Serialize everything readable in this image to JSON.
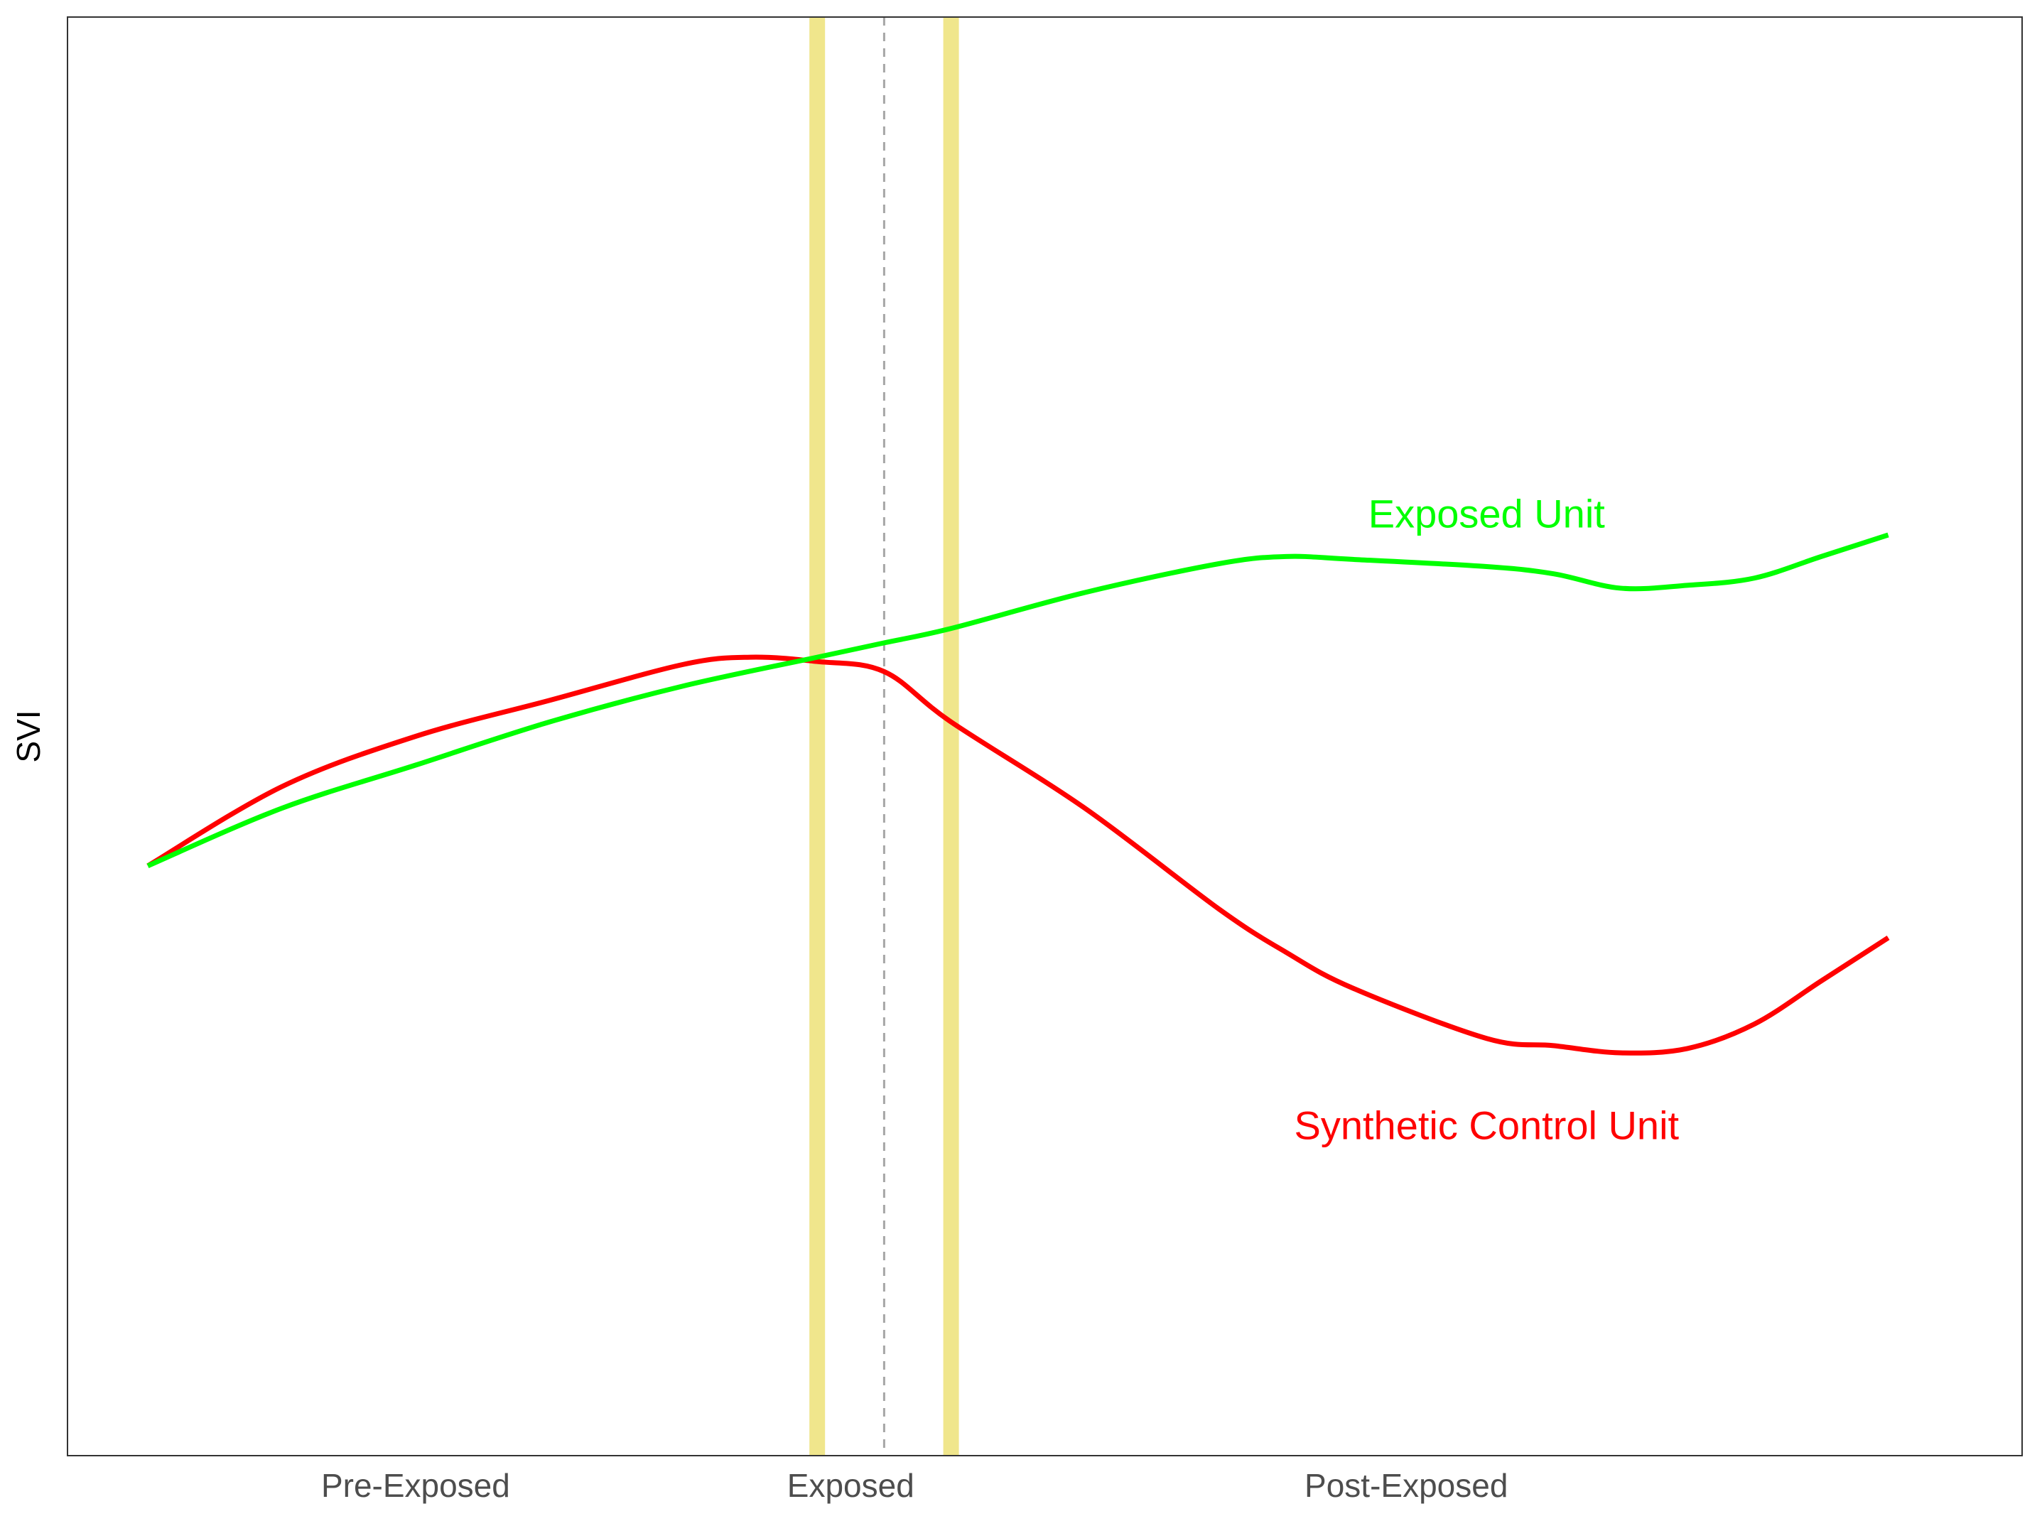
{
  "chart_data": {
    "type": "line",
    "title": "",
    "xlabel": "",
    "ylabel": "SVI",
    "x_tick_labels": [
      {
        "label": "Pre-Exposed",
        "x": 4.0
      },
      {
        "label": "Exposed",
        "x": 10.5
      },
      {
        "label": "Post-Exposed",
        "x": 18.8
      }
    ],
    "xlim": [
      -1.2,
      28.0
    ],
    "ylim": [
      0,
      100
    ],
    "grid": false,
    "exposure_line_x": 11.0,
    "highlight_bands_x": [
      10.0,
      12.0
    ],
    "series": [
      {
        "name": "Exposed Unit",
        "color": "#00ff00",
        "label_at": [
          20.0,
          65.5
        ],
        "x": [
          0,
          2,
          4,
          6,
          8,
          10,
          11,
          12,
          14,
          16,
          17,
          18,
          20,
          21,
          22,
          23,
          24,
          25,
          26
        ],
        "y": [
          41.0,
          45.0,
          48.0,
          51.0,
          53.5,
          55.5,
          56.5,
          57.5,
          60.0,
          62.0,
          62.5,
          62.3,
          61.8,
          61.3,
          60.3,
          60.5,
          61.0,
          62.5,
          64.0
        ]
      },
      {
        "name": "Synthetic Control Unit",
        "color": "#ff0000",
        "label_at": [
          20.0,
          23.0
        ],
        "x": [
          0,
          2,
          4,
          6,
          8,
          9,
          10,
          11,
          12,
          14,
          16,
          17,
          18,
          20,
          21,
          22,
          23,
          24,
          25,
          26
        ],
        "y": [
          41.0,
          46.5,
          50.0,
          52.5,
          55.0,
          55.5,
          55.2,
          54.5,
          51.0,
          45.0,
          38.0,
          35.0,
          32.5,
          29.0,
          28.5,
          28.0,
          28.3,
          30.0,
          33.0,
          36.0
        ]
      }
    ]
  }
}
